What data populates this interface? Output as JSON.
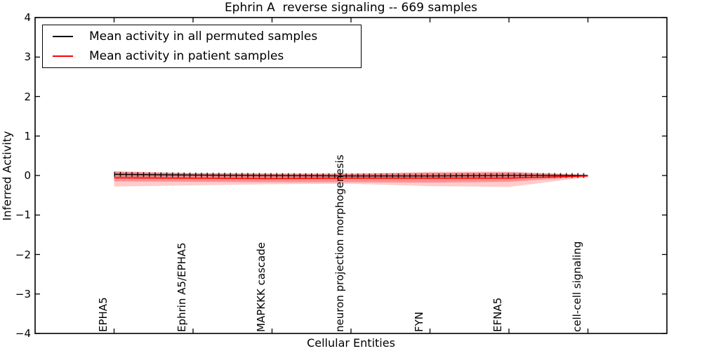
{
  "title": "Ephrin A  reverse signaling -- 669 samples",
  "axes": {
    "ylabel": "Inferred Activity",
    "xlabel": "Cellular Entities",
    "ytick_labels": [
      "4",
      "3",
      "2",
      "1",
      "0",
      "−1",
      "−2",
      "−3",
      "−4"
    ]
  },
  "legend": {
    "entries": [
      {
        "label": "Mean activity in all permuted samples",
        "color": "#000000"
      },
      {
        "label": "Mean activity in patient samples",
        "color": "#ff0000"
      }
    ]
  },
  "chart_data": {
    "type": "line",
    "title": "Ephrin A  reverse signaling -- 669 samples",
    "xlabel": "Cellular Entities",
    "ylabel": "Inferred Activity",
    "xlim": [
      0,
      8
    ],
    "ylim": [
      -4,
      4
    ],
    "yticks": [
      4,
      3,
      2,
      1,
      0,
      -1,
      -2,
      -3,
      -4
    ],
    "grid": false,
    "legend_position": "upper left",
    "x": [
      1,
      2,
      3,
      4,
      5,
      6,
      7
    ],
    "categories": [
      "EPHA5",
      "Ephrin A5/EPHA5",
      "MAPKKK cascade",
      "neuron projection morphogenesis",
      "FYN",
      "EFNA5",
      "cell-cell signaling"
    ],
    "series": [
      {
        "name": "Mean activity in all permuted samples",
        "color": "#000000",
        "marker": "|",
        "values": [
          0.03,
          0.01,
          0.0,
          -0.01,
          -0.01,
          0.0,
          0.0
        ]
      },
      {
        "name": "Mean activity in patient samples",
        "color": "#ff0000",
        "marker": "none",
        "values": [
          -0.06,
          -0.07,
          -0.08,
          -0.07,
          -0.07,
          -0.07,
          -0.01
        ]
      }
    ],
    "bands": [
      {
        "name": "permuted-samples-spread",
        "color": "#999999",
        "opacity": 0.35,
        "top": [
          0.07,
          0.06,
          0.05,
          0.05,
          0.05,
          0.06,
          0.02
        ],
        "bottom": [
          -0.04,
          -0.05,
          -0.06,
          -0.06,
          -0.06,
          -0.05,
          -0.02
        ]
      },
      {
        "name": "patient-samples-spread-outer",
        "color": "#ff0000",
        "opacity": 0.2,
        "top": [
          0.11,
          0.06,
          0.05,
          0.05,
          0.09,
          0.1,
          0.02
        ],
        "bottom": [
          -0.28,
          -0.25,
          -0.22,
          -0.21,
          -0.27,
          -0.29,
          -0.04
        ]
      },
      {
        "name": "patient-samples-spread-inner",
        "color": "#ff0000",
        "opacity": 0.28,
        "top": [
          0.1,
          0.05,
          0.04,
          0.04,
          0.07,
          0.08,
          0.01
        ],
        "bottom": [
          -0.15,
          -0.16,
          -0.17,
          -0.17,
          -0.18,
          -0.16,
          -0.03
        ]
      }
    ]
  }
}
